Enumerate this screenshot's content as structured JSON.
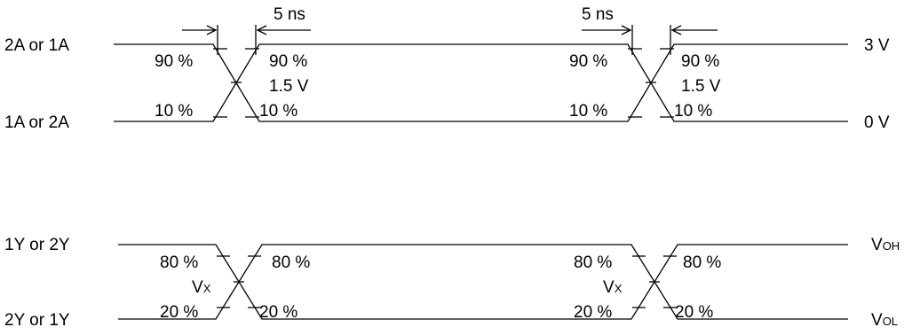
{
  "input": {
    "signal_high_label": "2A or 1A",
    "signal_low_label": "1A or 2A",
    "level_high": "3 V",
    "level_low": "0 V",
    "edge1": {
      "rise_label": "5 ns",
      "pct_high_left": "90 %",
      "pct_high_right": "90 %",
      "mid_label": "1.5 V",
      "pct_low_left": "10 %",
      "pct_low_right": "10 %"
    },
    "edge2": {
      "fall_label": "5 ns",
      "pct_high_left": "90 %",
      "pct_high_right": "90 %",
      "mid_label": "1.5 V",
      "pct_low_left": "10 %",
      "pct_low_right": "10 %"
    }
  },
  "output": {
    "signal_high_label": "1Y or 2Y",
    "signal_low_label": "2Y or 1Y",
    "level_high": {
      "main": "V",
      "sub": "OH"
    },
    "level_low": {
      "main": "V",
      "sub": "OL"
    },
    "edge1": {
      "pct_high_left": "80 %",
      "pct_high_right": "80 %",
      "mid_main": "V",
      "mid_sub": "X",
      "pct_low_left": "20 %",
      "pct_low_right": "20 %"
    },
    "edge2": {
      "pct_high_left": "80 %",
      "pct_high_right": "80 %",
      "mid_main": "V",
      "mid_sub": "X",
      "pct_low_left": "20 %",
      "pct_low_right": "20 %"
    }
  }
}
